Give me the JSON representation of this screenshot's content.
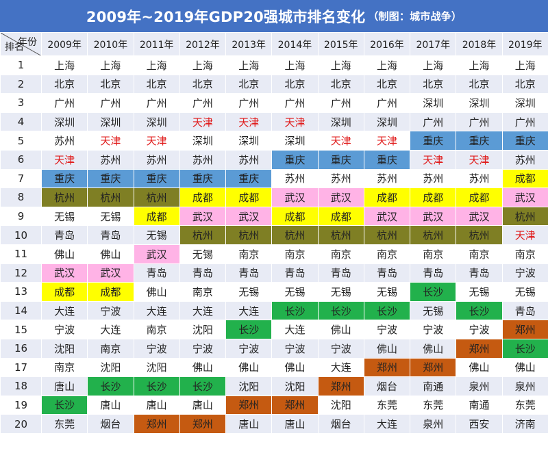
{
  "title": "2009年~2019年GDP20强城市排名变化",
  "source_note": "（制图：城市战争）",
  "header": {
    "corner_year": "年份",
    "corner_rank": "排名",
    "years": [
      "2009年",
      "2010年",
      "2011年",
      "2012年",
      "2013年",
      "2014年",
      "2015年",
      "2016年",
      "2017年",
      "2018年",
      "2019年"
    ]
  },
  "ranks": [
    "1",
    "2",
    "3",
    "4",
    "5",
    "6",
    "7",
    "8",
    "9",
    "10",
    "11",
    "12",
    "13",
    "14",
    "15",
    "16",
    "17",
    "18",
    "19",
    "20"
  ],
  "colors": {
    "title_bar": "#4472c4",
    "row_alt": "#e8ebf5",
    "重庆": "#5b9bd5",
    "杭州": "#7f7f24",
    "成都": "#ffff00",
    "武汉": "#ffb3e6",
    "长沙": "#22b14c",
    "郑州": "#c55a11",
    "天津_text": "#e01b1b"
  },
  "chart_data": {
    "type": "table",
    "title": "2009年~2019年GDP20强城市排名变化",
    "columns": [
      "2009年",
      "2010年",
      "2011年",
      "2012年",
      "2013年",
      "2014年",
      "2015年",
      "2016年",
      "2017年",
      "2018年",
      "2019年"
    ],
    "rows": [
      [
        "上海",
        "上海",
        "上海",
        "上海",
        "上海",
        "上海",
        "上海",
        "上海",
        "上海",
        "上海",
        "上海"
      ],
      [
        "北京",
        "北京",
        "北京",
        "北京",
        "北京",
        "北京",
        "北京",
        "北京",
        "北京",
        "北京",
        "北京"
      ],
      [
        "广州",
        "广州",
        "广州",
        "广州",
        "广州",
        "广州",
        "广州",
        "广州",
        "深圳",
        "深圳",
        "深圳"
      ],
      [
        "深圳",
        "深圳",
        "深圳",
        "天津",
        "天津",
        "天津",
        "深圳",
        "深圳",
        "广州",
        "广州",
        "广州"
      ],
      [
        "苏州",
        "天津",
        "天津",
        "深圳",
        "深圳",
        "深圳",
        "天津",
        "天津",
        "重庆",
        "重庆",
        "重庆"
      ],
      [
        "天津",
        "苏州",
        "苏州",
        "苏州",
        "苏州",
        "重庆",
        "重庆",
        "重庆",
        "天津",
        "天津",
        "苏州"
      ],
      [
        "重庆",
        "重庆",
        "重庆",
        "重庆",
        "重庆",
        "苏州",
        "苏州",
        "苏州",
        "苏州",
        "苏州",
        "成都"
      ],
      [
        "杭州",
        "杭州",
        "杭州",
        "成都",
        "成都",
        "武汉",
        "武汉",
        "成都",
        "成都",
        "成都",
        "武汉"
      ],
      [
        "无锡",
        "无锡",
        "成都",
        "武汉",
        "武汉",
        "成都",
        "成都",
        "武汉",
        "武汉",
        "武汉",
        "杭州"
      ],
      [
        "青岛",
        "青岛",
        "无锡",
        "杭州",
        "杭州",
        "杭州",
        "杭州",
        "杭州",
        "杭州",
        "杭州",
        "天津"
      ],
      [
        "佛山",
        "佛山",
        "武汉",
        "无锡",
        "南京",
        "南京",
        "南京",
        "南京",
        "南京",
        "南京",
        "南京"
      ],
      [
        "武汉",
        "武汉",
        "青岛",
        "青岛",
        "青岛",
        "青岛",
        "青岛",
        "青岛",
        "青岛",
        "青岛",
        "宁波"
      ],
      [
        "成都",
        "成都",
        "佛山",
        "南京",
        "无锡",
        "无锡",
        "无锡",
        "无锡",
        "长沙",
        "无锡",
        "无锡"
      ],
      [
        "大连",
        "宁波",
        "大连",
        "大连",
        "大连",
        "长沙",
        "长沙",
        "长沙",
        "无锡",
        "长沙",
        "青岛"
      ],
      [
        "宁波",
        "大连",
        "南京",
        "沈阳",
        "长沙",
        "大连",
        "佛山",
        "宁波",
        "宁波",
        "宁波",
        "郑州"
      ],
      [
        "沈阳",
        "南京",
        "宁波",
        "宁波",
        "宁波",
        "宁波",
        "宁波",
        "佛山",
        "佛山",
        "郑州",
        "长沙"
      ],
      [
        "南京",
        "沈阳",
        "沈阳",
        "佛山",
        "佛山",
        "佛山",
        "大连",
        "郑州",
        "郑州",
        "佛山",
        "佛山"
      ],
      [
        "唐山",
        "长沙",
        "长沙",
        "长沙",
        "沈阳",
        "沈阳",
        "郑州",
        "烟台",
        "南通",
        "泉州",
        "泉州"
      ],
      [
        "长沙",
        "唐山",
        "唐山",
        "唐山",
        "郑州",
        "郑州",
        "沈阳",
        "东莞",
        "东莞",
        "南通",
        "东莞"
      ],
      [
        "东莞",
        "烟台",
        "郑州",
        "郑州",
        "唐山",
        "唐山",
        "烟台",
        "大连",
        "泉州",
        "西安",
        "济南"
      ]
    ]
  }
}
